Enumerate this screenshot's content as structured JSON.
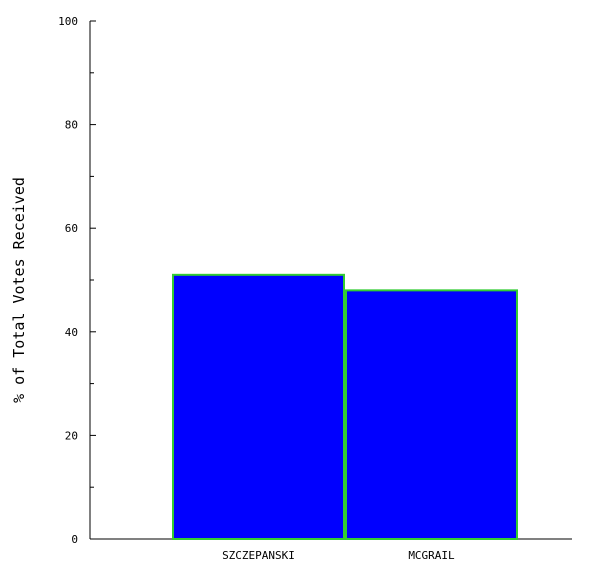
{
  "chart_data": {
    "type": "bar",
    "title": "",
    "xlabel": "",
    "ylabel": "% of Total Votes Received",
    "categories": [
      "SZCZEPANSKI",
      "MCGRAIL"
    ],
    "values": [
      51,
      48
    ],
    "ylim": [
      0,
      100
    ],
    "yticks": [
      0,
      20,
      40,
      60,
      80,
      100
    ],
    "ytick_labels": [
      "0",
      "20",
      "40",
      "60",
      "80",
      "100"
    ],
    "minor_tick_step": 10,
    "grid": false,
    "bar_fill": "#0000ff",
    "bar_edge": "#33cc33"
  }
}
